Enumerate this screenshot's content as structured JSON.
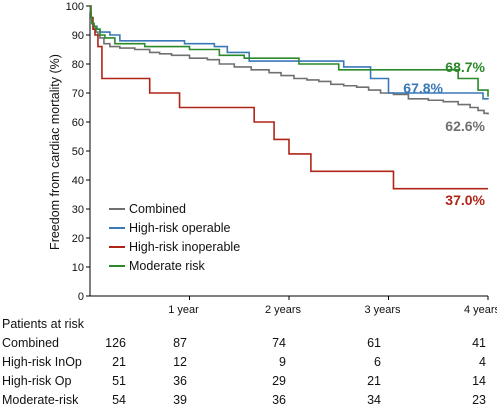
{
  "chart_data": {
    "type": "line",
    "title": "",
    "xlabel": "",
    "ylabel": "Freedom from cardiac mortality (%)",
    "xlim": [
      0,
      4
    ],
    "ylim": [
      0,
      100
    ],
    "yticks": [
      0,
      10,
      20,
      30,
      40,
      50,
      60,
      70,
      80,
      90,
      100
    ],
    "xticks": [
      {
        "value": 1,
        "label": "1 year"
      },
      {
        "value": 2,
        "label": "2 years"
      },
      {
        "value": 3,
        "label": "3 years"
      },
      {
        "value": 4,
        "label": "4 years"
      }
    ],
    "legend_position": "bottom-left",
    "series": [
      {
        "name": "Combined",
        "color": "#707070",
        "end_label": "62.6%",
        "x": [
          0,
          0.005,
          0.01,
          0.02,
          0.03,
          0.04,
          0.06,
          0.08,
          0.1,
          0.14,
          0.2,
          0.3,
          0.45,
          0.6,
          0.7,
          0.82,
          1.0,
          1.18,
          1.3,
          1.45,
          1.62,
          1.8,
          1.92,
          2.05,
          2.18,
          2.3,
          2.42,
          2.55,
          2.68,
          2.8,
          2.92,
          3.05,
          3.2,
          3.4,
          3.55,
          3.7,
          3.82,
          3.9,
          3.96,
          4.0
        ],
        "y": [
          100,
          98,
          96,
          94,
          93,
          92,
          91,
          90,
          89,
          87,
          86,
          85.5,
          85,
          84,
          83.5,
          83,
          82,
          81.5,
          80,
          79,
          78,
          77,
          76,
          75,
          74.5,
          74,
          73,
          72.5,
          72,
          71,
          70,
          69.5,
          68,
          67.5,
          67,
          66,
          65,
          64,
          63,
          62.6
        ]
      },
      {
        "name": "High-risk operable",
        "color": "#3a78b8",
        "end_label": "67.8%",
        "x": [
          0,
          0.005,
          0.01,
          0.02,
          0.04,
          0.07,
          0.1,
          0.2,
          0.3,
          0.95,
          1.0,
          1.25,
          1.38,
          1.6,
          2.55,
          2.82,
          3.0,
          3.95,
          4.0
        ],
        "y": [
          100,
          98,
          96,
          94,
          93,
          92,
          91,
          90,
          88,
          87,
          87,
          86,
          84,
          81,
          79,
          75,
          70,
          68,
          67.8
        ]
      },
      {
        "name": "High-risk inoperable",
        "color": "#b02418",
        "end_label": "37.0%",
        "x": [
          0,
          0.01,
          0.03,
          0.05,
          0.08,
          0.12,
          0.6,
          0.9,
          1.65,
          1.85,
          2.0,
          2.22,
          3.05,
          4.0
        ],
        "y": [
          100,
          96,
          92,
          90,
          86,
          75,
          70,
          65,
          60,
          54,
          49,
          43,
          37,
          37
        ]
      },
      {
        "name": "Moderate risk",
        "color": "#2a8a2a",
        "end_label": "68.7%",
        "x": [
          0,
          0.005,
          0.01,
          0.02,
          0.04,
          0.06,
          0.1,
          0.15,
          0.25,
          0.55,
          1.0,
          1.3,
          1.55,
          2.1,
          2.5,
          3.7,
          3.9,
          4.0
        ],
        "y": [
          100,
          98,
          96,
          94,
          93,
          92,
          90,
          89,
          87,
          86,
          85,
          83,
          82,
          80,
          78,
          75,
          71,
          68.7
        ]
      }
    ]
  },
  "risk_table": {
    "title": "Patients at risk",
    "rows": [
      {
        "label": "Combined",
        "counts": [
          "126",
          "87",
          "74",
          "61",
          "41"
        ]
      },
      {
        "label": "High-risk InOp",
        "counts": [
          "21",
          "12",
          "9",
          "6",
          "4"
        ]
      },
      {
        "label": "High-risk Op",
        "counts": [
          "51",
          "36",
          "29",
          "21",
          "14"
        ]
      },
      {
        "label": "Moderate-risk",
        "counts": [
          "54",
          "39",
          "36",
          "34",
          "23"
        ]
      }
    ]
  }
}
